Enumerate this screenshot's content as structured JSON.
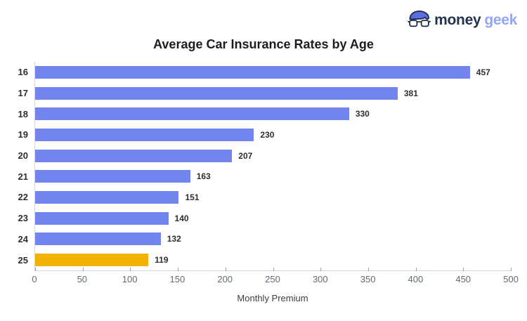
{
  "logo": {
    "text_money": "money",
    "text_geek": "geek",
    "icon": "geek-car-icon",
    "color_money": "#24334e",
    "color_geek": "#94a5f3"
  },
  "header": {
    "title": "Average Car Insurance Rates by Age"
  },
  "chart_data": {
    "type": "bar",
    "orientation": "horizontal",
    "title": "Average Car Insurance Rates by Age",
    "categories": [
      "16",
      "17",
      "18",
      "19",
      "20",
      "21",
      "22",
      "23",
      "24",
      "25"
    ],
    "values": [
      457,
      381,
      330,
      230,
      207,
      163,
      151,
      140,
      132,
      119
    ],
    "xlabel": "Monthly Premium",
    "ylabel": "",
    "xlim": [
      0,
      500
    ],
    "x_ticks": [
      0,
      50,
      100,
      150,
      200,
      250,
      300,
      350,
      400,
      450,
      500
    ],
    "grid": false,
    "legend_position": "none",
    "bar_color": "#7285ee",
    "highlight_color": "#f2b202",
    "highlight_category": "25",
    "value_labels_shown": true
  }
}
